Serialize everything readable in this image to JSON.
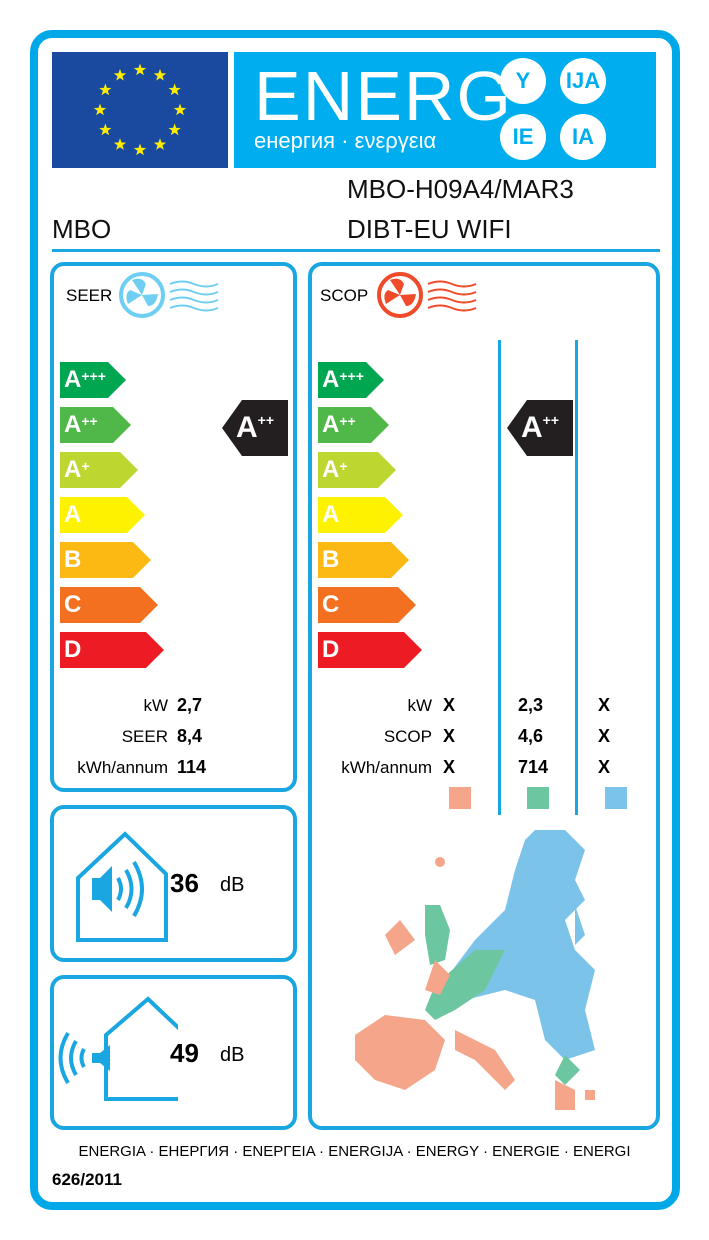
{
  "header": {
    "word": "ENERG",
    "sub": "енергия · ενεργεια",
    "endings": [
      "Y",
      "IJA",
      "IE",
      "IA"
    ]
  },
  "supplier": "MBO",
  "model": [
    "MBO-H09A4/MAR3",
    "DIBT-EU WIFI"
  ],
  "classes": [
    {
      "l": "A",
      "s": "+++",
      "c": "#00a650"
    },
    {
      "l": "A",
      "s": "++",
      "c": "#50b848"
    },
    {
      "l": "A",
      "s": "+",
      "c": "#bed630"
    },
    {
      "l": "A",
      "s": "",
      "c": "#fff200"
    },
    {
      "l": "B",
      "s": "",
      "c": "#fdb913"
    },
    {
      "l": "C",
      "s": "",
      "c": "#f37021"
    },
    {
      "l": "D",
      "s": "",
      "c": "#ed1c24"
    }
  ],
  "seer": {
    "title": "SEER",
    "rating": "A",
    "rating_sup": "++",
    "labels": [
      "kW",
      "SEER",
      "kWh/annum"
    ],
    "values": [
      "2,7",
      "8,4",
      "114"
    ]
  },
  "scop": {
    "title": "SCOP",
    "rating": "A",
    "rating_sup": "++",
    "labels": [
      "kW",
      "SCOP",
      "kWh/annum"
    ],
    "columns": [
      [
        "X",
        "X",
        "X"
      ],
      [
        "2,3",
        "4,6",
        "714"
      ],
      [
        "X",
        "X",
        "X"
      ]
    ],
    "zone_colors": [
      "#f4a58a",
      "#6cc6a0",
      "#7cc3ea"
    ]
  },
  "noise_indoor": {
    "value": "36",
    "unit": "dB"
  },
  "noise_outdoor": {
    "value": "49",
    "unit": "dB"
  },
  "footer": {
    "languages": "ENERGIA · ЕНЕРГИЯ · ΕΝΕΡΓΕΙΑ · ENERGIJA · ENERGY · ENERGIE · ENERGI",
    "regulation": "626/2011"
  },
  "colors": {
    "frame": "#00a8e8",
    "flag": "#1a4a9f",
    "banner": "#00aeef"
  }
}
